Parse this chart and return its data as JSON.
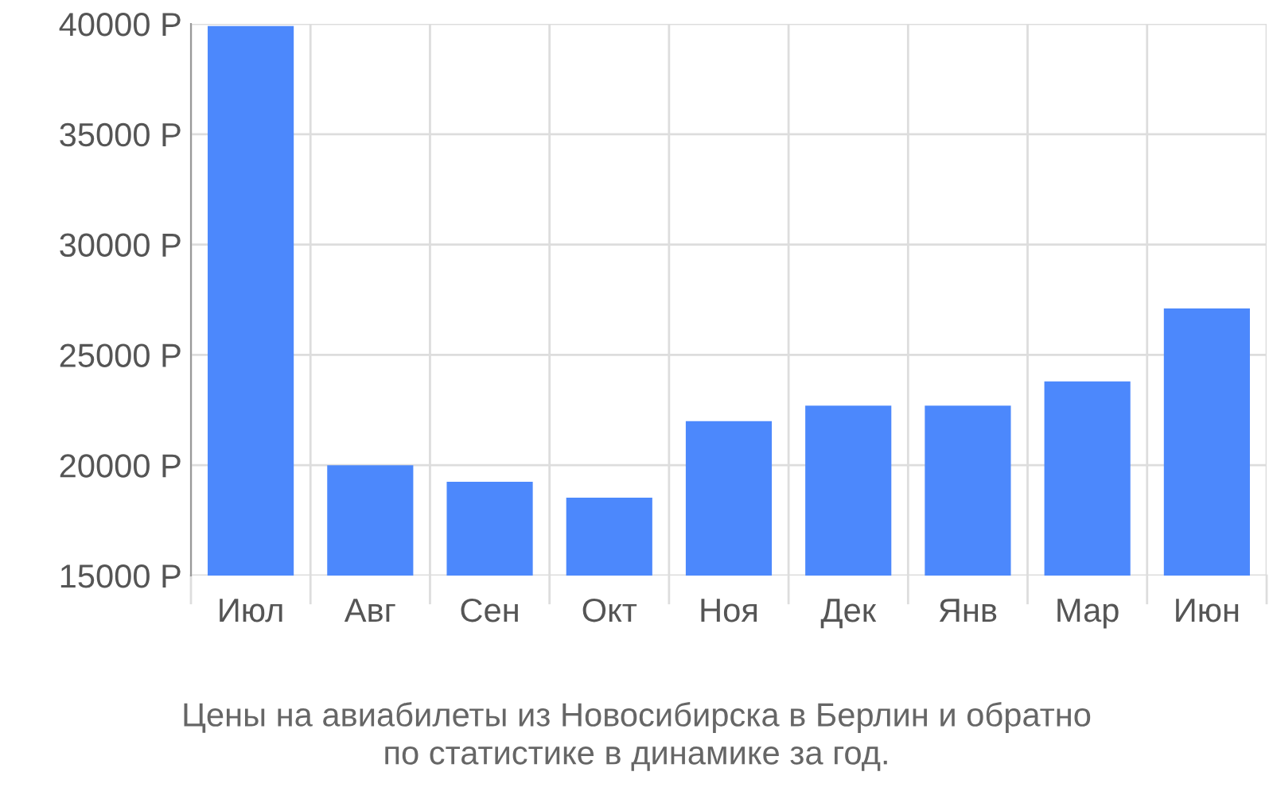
{
  "chart_data": {
    "type": "bar",
    "title": "Цены на авиабилеты из Новосибирска в Берлин и обратно\nпо статистике в динамике за год.",
    "categories": [
      "Июл",
      "Авг",
      "Сен",
      "Окт",
      "Ноя",
      "Дек",
      "Янв",
      "Мар",
      "Июн"
    ],
    "values": [
      39900,
      20000,
      19250,
      18530,
      22000,
      22700,
      22700,
      23800,
      27100
    ],
    "color": "#4c88fc",
    "ylim": [
      15000,
      40000
    ],
    "yticks": [
      {
        "value": 15000,
        "label": "15000 Р"
      },
      {
        "value": 20000,
        "label": "20000 Р"
      },
      {
        "value": 25000,
        "label": "25000 Р"
      },
      {
        "value": 30000,
        "label": "30000 Р"
      },
      {
        "value": 35000,
        "label": "35000 Р"
      },
      {
        "value": 40000,
        "label": "40000 Р"
      }
    ],
    "grid": true
  }
}
